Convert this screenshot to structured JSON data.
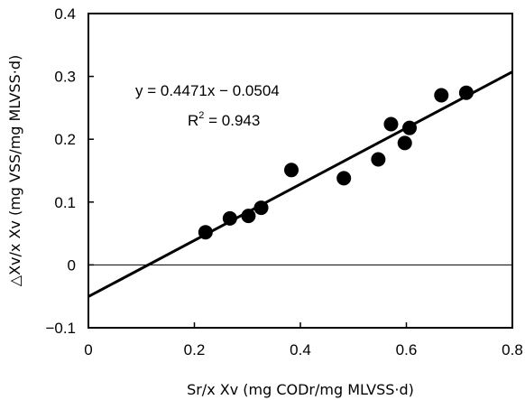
{
  "chart_data": {
    "type": "scatter",
    "title": "",
    "xlabel": "Sr/x Xv (mg CODr/mg MLVSS·d)",
    "ylabel": "△Xv/x Xv (mg VSS/mg MLVSS·d)",
    "xlim": [
      0,
      0.8
    ],
    "ylim": [
      -0.1,
      0.4
    ],
    "x_ticks": [
      "0",
      "0.2",
      "0.4",
      "0.6",
      "0.8"
    ],
    "y_ticks": [
      "−0.1",
      "0",
      "0.1",
      "0.2",
      "0.3",
      "0.4"
    ],
    "grid": false,
    "points": [
      {
        "x": 0.221,
        "y": 0.052
      },
      {
        "x": 0.267,
        "y": 0.074
      },
      {
        "x": 0.302,
        "y": 0.078
      },
      {
        "x": 0.326,
        "y": 0.091
      },
      {
        "x": 0.383,
        "y": 0.151
      },
      {
        "x": 0.482,
        "y": 0.138
      },
      {
        "x": 0.547,
        "y": 0.168
      },
      {
        "x": 0.571,
        "y": 0.224
      },
      {
        "x": 0.597,
        "y": 0.194
      },
      {
        "x": 0.606,
        "y": 0.218
      },
      {
        "x": 0.666,
        "y": 0.27
      },
      {
        "x": 0.713,
        "y": 0.274
      }
    ],
    "trendline": {
      "slope": 0.4471,
      "intercept": -0.0504,
      "x_range": [
        0,
        0.8
      ]
    },
    "zero_line": 0,
    "annotations": {
      "equation": "y = 0.4471x − 0.0504",
      "r2_base": "R",
      "r2_sup": "2",
      "r2_value": " = 0.943"
    }
  }
}
